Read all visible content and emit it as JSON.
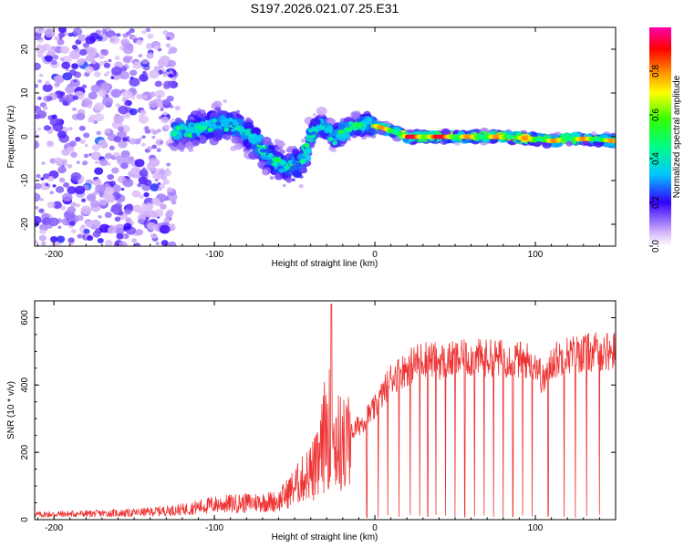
{
  "title": "S197.2026.021.07.25.E31",
  "chart_data": [
    {
      "type": "heatmap",
      "title": "S197.2026.021.07.25.E31",
      "xlabel": "Height of straight line (km)",
      "ylabel": "Frequency (Hz)",
      "xlim": [
        -212,
        150
      ],
      "ylim": [
        -25,
        25
      ],
      "xticks": [
        -200,
        -100,
        0,
        100
      ],
      "yticks": [
        -20,
        -10,
        0,
        10,
        20
      ],
      "colorbar": {
        "label": "Normalized spectral amplitude",
        "range": [
          0,
          1
        ],
        "ticks": [
          0.0,
          0.2,
          0.4,
          0.6,
          0.8
        ]
      },
      "regions": [
        {
          "x": [
            -212,
            -125
          ],
          "freq_center": 0,
          "freq_spread": 25,
          "amplitude": 0.15,
          "description": "noise"
        },
        {
          "x": [
            -125,
            -80
          ],
          "freq_center": 2,
          "freq_spread": 6,
          "amplitude": 0.4
        },
        {
          "x": [
            -80,
            -40
          ],
          "freq_center": -5,
          "freq_spread": 6,
          "amplitude": 0.5
        },
        {
          "x": [
            -40,
            0
          ],
          "freq_center": 1,
          "freq_spread": 4,
          "amplitude": 0.5
        },
        {
          "x": [
            0,
            150
          ],
          "freq_center": 0,
          "freq_spread": 1.5,
          "amplitude": 0.8
        }
      ],
      "ridge": {
        "x": [
          -125,
          -110,
          -95,
          -85,
          -75,
          -65,
          -55,
          -45,
          -40,
          -35,
          -25,
          -15,
          -5,
          5,
          20,
          40,
          60,
          80,
          100,
          110,
          120,
          135,
          150
        ],
        "freq": [
          1,
          2,
          3,
          2,
          -1,
          -5,
          -7,
          -6,
          0,
          3,
          0,
          2,
          3,
          2,
          0,
          0,
          0,
          0,
          -0.5,
          -1,
          -0.5,
          -0.5,
          -1
        ]
      }
    },
    {
      "type": "line",
      "xlabel": "Height of straight line (km)",
      "ylabel": "SNR (10 * v/v)",
      "xlim": [
        -212,
        150
      ],
      "ylim": [
        0,
        650
      ],
      "xticks": [
        -200,
        -100,
        0,
        100
      ],
      "yticks": [
        0,
        200,
        400,
        600
      ],
      "series": [
        {
          "name": "SNR",
          "color": "#ee3333",
          "envelope_x": [
            -212,
            -150,
            -120,
            -100,
            -80,
            -60,
            -45,
            -35,
            -30,
            -25,
            -20,
            -10,
            0,
            10,
            20,
            30,
            40,
            60,
            80,
            100,
            105,
            110,
            120,
            140,
            150
          ],
          "envelope_y": [
            15,
            20,
            30,
            45,
            50,
            55,
            120,
            170,
            300,
            250,
            230,
            280,
            330,
            420,
            450,
            480,
            470,
            480,
            480,
            470,
            410,
            470,
            490,
            500,
            500
          ],
          "spike": {
            "x": -27,
            "y": 640
          },
          "dropouts_x": [
            -5,
            2,
            8,
            15,
            22,
            28,
            33,
            38,
            44,
            50,
            56,
            62,
            68,
            74,
            80,
            86,
            92,
            98,
            108,
            118,
            125,
            132,
            140
          ]
        }
      ]
    }
  ]
}
